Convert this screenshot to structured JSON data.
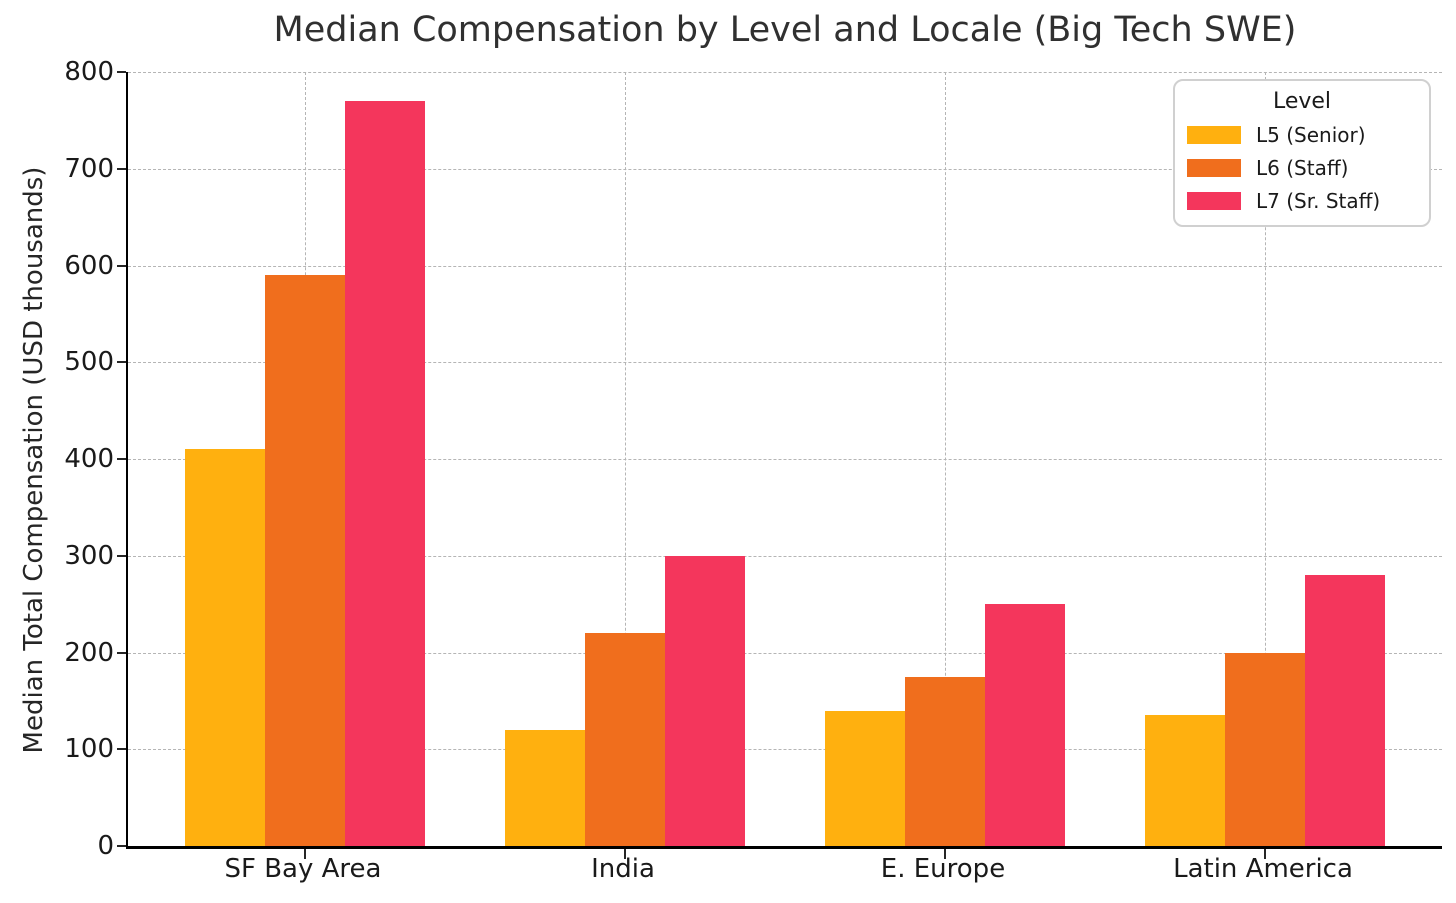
{
  "chart_data": {
    "type": "bar",
    "title": "Median Compensation by Level and Locale (Big Tech SWE)",
    "xlabel": "",
    "ylabel": "Median Total Compensation (USD thousands)",
    "categories": [
      "SF Bay Area",
      "India",
      "E. Europe",
      "Latin America"
    ],
    "series": [
      {
        "name": "L5 (Senior)",
        "color": "#FFB00F",
        "values": [
          410,
          120,
          140,
          135
        ]
      },
      {
        "name": "L6 (Staff)",
        "color": "#F06E1D",
        "values": [
          590,
          220,
          175,
          200
        ]
      },
      {
        "name": "L7 (Sr. Staff)",
        "color": "#F4365C",
        "values": [
          770,
          300,
          250,
          280
        ]
      }
    ],
    "ylim": [
      0,
      800
    ],
    "yticks": [
      0,
      100,
      200,
      300,
      400,
      500,
      600,
      700,
      800
    ],
    "legend": {
      "title": "Level",
      "position": "upper right"
    },
    "grid": {
      "horizontal": true,
      "vertical": true,
      "style": "dashed",
      "color": "#b5b5b5"
    },
    "axis_color": "#000000",
    "background": "#ffffff"
  }
}
